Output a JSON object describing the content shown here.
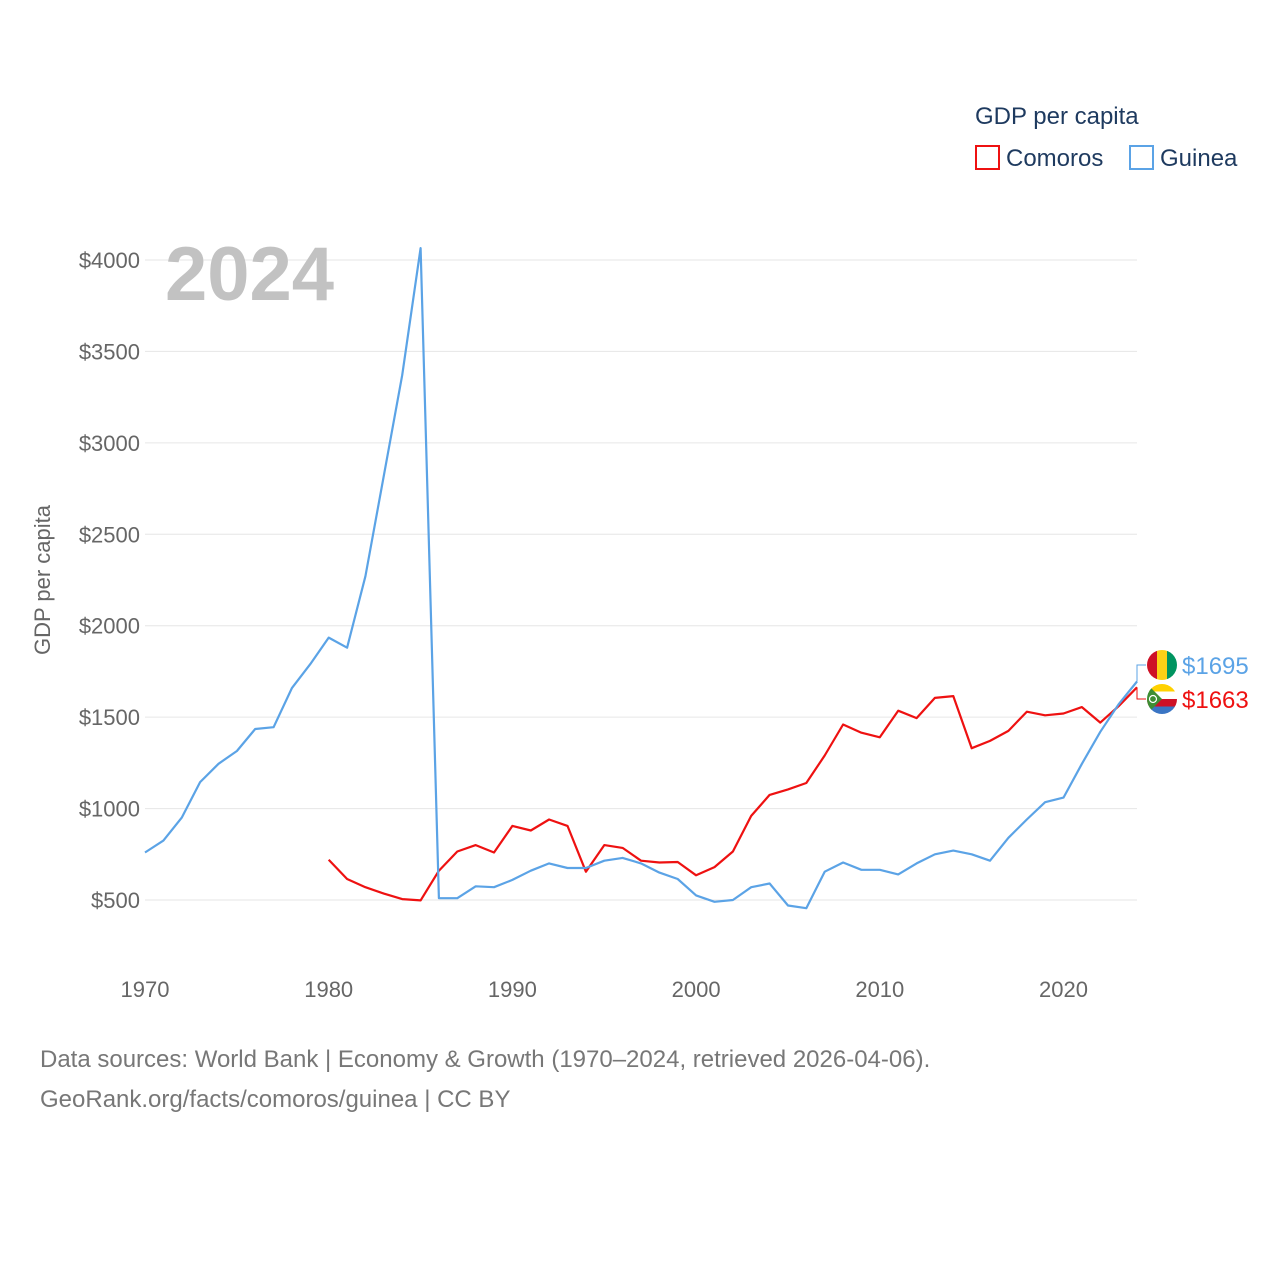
{
  "chart_data": {
    "type": "line",
    "title": "GDP per capita",
    "ylabel": "GDP per capita",
    "xlabel": "",
    "current_year": "2024",
    "xlim": [
      1970,
      2024
    ],
    "ylim": [
      250,
      4100
    ],
    "x_ticks": [
      1970,
      1980,
      1990,
      2000,
      2010,
      2020
    ],
    "y_ticks": [
      500,
      1000,
      1500,
      2000,
      2500,
      3000,
      3500,
      4000
    ],
    "y_tick_labels": [
      "$500",
      "$1000",
      "$1500",
      "$2000",
      "$2500",
      "$3000",
      "$3500",
      "$4000"
    ],
    "series": [
      {
        "name": "Comoros",
        "color": "#ee1111",
        "end_label": "$1663",
        "flag": "comoros-flag-icon",
        "x": [
          1980,
          1981,
          1982,
          1983,
          1984,
          1985,
          1986,
          1987,
          1988,
          1989,
          1990,
          1991,
          1992,
          1993,
          1994,
          1995,
          1996,
          1997,
          1998,
          1999,
          2000,
          2001,
          2002,
          2003,
          2004,
          2005,
          2006,
          2007,
          2008,
          2009,
          2010,
          2011,
          2012,
          2013,
          2014,
          2015,
          2016,
          2017,
          2018,
          2019,
          2020,
          2021,
          2022,
          2023,
          2024
        ],
        "values": [
          720,
          615,
          570,
          535,
          505,
          498,
          660,
          765,
          800,
          760,
          905,
          880,
          940,
          905,
          655,
          800,
          785,
          715,
          705,
          708,
          635,
          680,
          765,
          960,
          1075,
          1105,
          1140,
          1290,
          1460,
          1415,
          1390,
          1535,
          1495,
          1605,
          1615,
          1330,
          1370,
          1425,
          1530,
          1510,
          1520,
          1555,
          1470,
          1560,
          1663
        ]
      },
      {
        "name": "Guinea",
        "color": "#5ba3e6",
        "end_label": "$1695",
        "flag": "guinea-flag-icon",
        "x": [
          1970,
          1971,
          1972,
          1973,
          1974,
          1975,
          1976,
          1977,
          1978,
          1979,
          1980,
          1981,
          1982,
          1983,
          1984,
          1985,
          1986,
          1987,
          1988,
          1989,
          1990,
          1991,
          1992,
          1993,
          1994,
          1995,
          1996,
          1997,
          1998,
          1999,
          2000,
          2001,
          2002,
          2003,
          2004,
          2005,
          2006,
          2007,
          2008,
          2009,
          2010,
          2011,
          2012,
          2013,
          2014,
          2015,
          2016,
          2017,
          2018,
          2019,
          2020,
          2021,
          2022,
          2023,
          2024
        ],
        "values": [
          760,
          825,
          950,
          1145,
          1245,
          1315,
          1435,
          1445,
          1660,
          1790,
          1935,
          1880,
          2270,
          2820,
          3370,
          4065,
          510,
          510,
          575,
          570,
          610,
          660,
          700,
          675,
          675,
          715,
          730,
          700,
          650,
          615,
          525,
          490,
          500,
          570,
          590,
          470,
          455,
          655,
          705,
          665,
          665,
          640,
          700,
          750,
          770,
          750,
          715,
          840,
          940,
          1035,
          1060,
          1245,
          1420,
          1570,
          1695
        ]
      }
    ]
  },
  "source": {
    "line1": "Data sources: World Bank | Economy & Growth (1970–2024, retrieved 2026-04-06).",
    "line2": "GeoRank.org/facts/comoros/guinea | CC BY"
  }
}
